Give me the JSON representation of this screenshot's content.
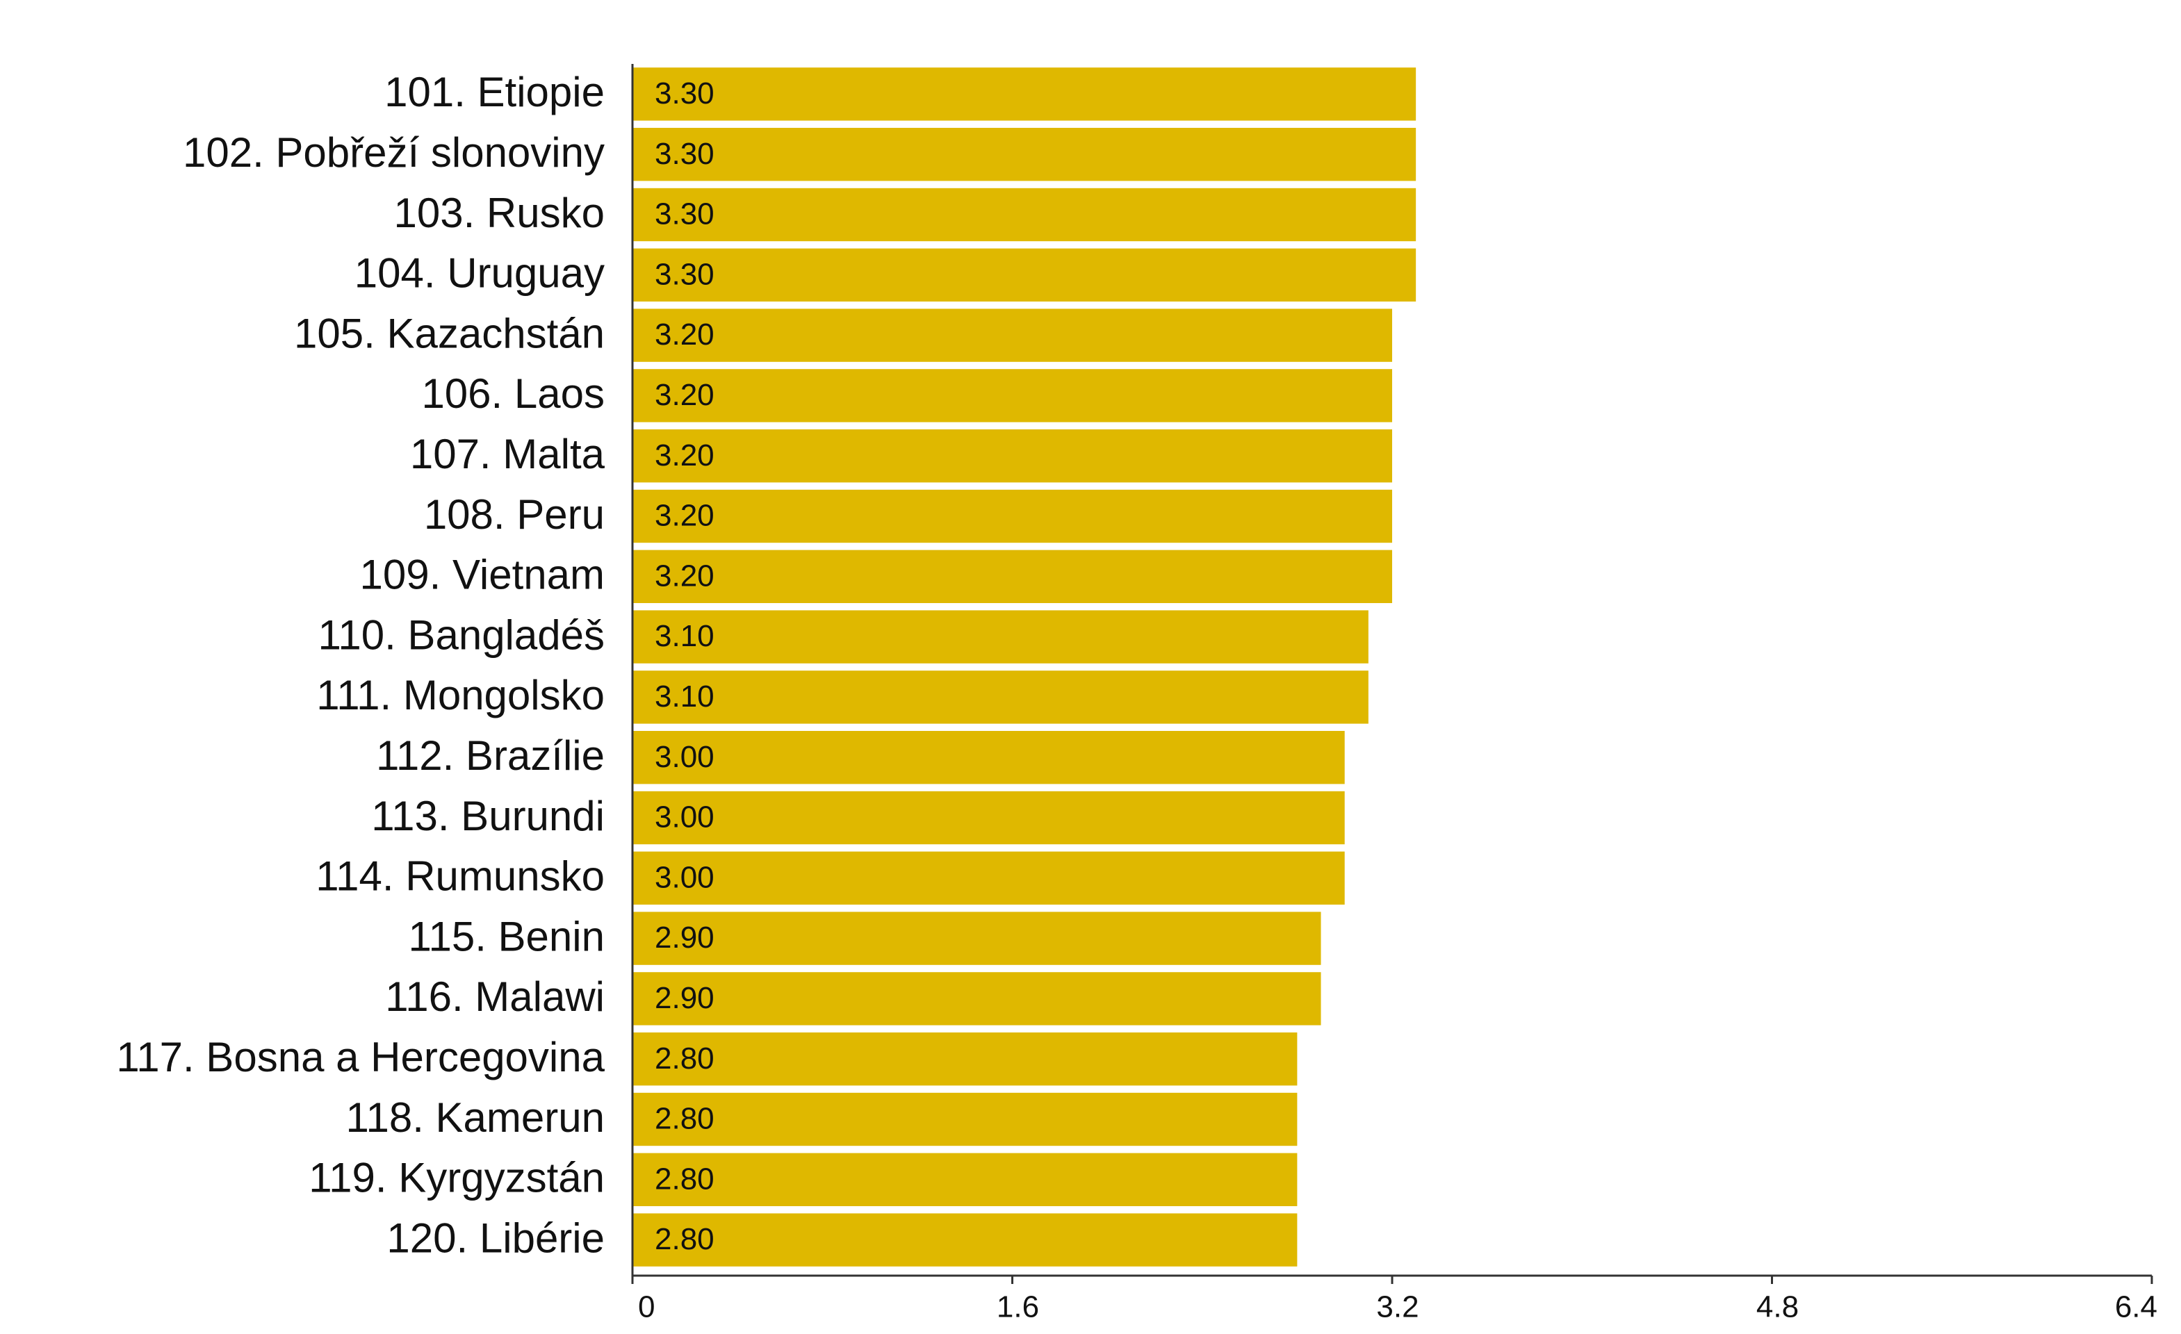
{
  "chart_data": {
    "type": "bar",
    "orientation": "horizontal",
    "categories": [
      "101. Etiopie",
      "102. Pobřeží slonoviny",
      "103. Rusko",
      "104. Uruguay",
      "105. Kazachstán",
      "106. Laos",
      "107. Malta",
      "108. Peru",
      "109. Vietnam",
      "110. Bangladéš",
      "111. Mongolsko",
      "112. Brazílie",
      "113. Burundi",
      "114. Rumunsko",
      "115. Benin",
      "116. Malawi",
      "117. Bosna a Hercegovina",
      "118. Kamerun",
      "119. Kyrgyzstán",
      "120. Libérie"
    ],
    "values": [
      3.3,
      3.3,
      3.3,
      3.3,
      3.2,
      3.2,
      3.2,
      3.2,
      3.2,
      3.1,
      3.1,
      3.0,
      3.0,
      3.0,
      2.9,
      2.9,
      2.8,
      2.8,
      2.8,
      2.8
    ],
    "value_labels": [
      "3.30",
      "3.30",
      "3.30",
      "3.30",
      "3.20",
      "3.20",
      "3.20",
      "3.20",
      "3.20",
      "3.10",
      "3.10",
      "3.00",
      "3.00",
      "3.00",
      "2.90",
      "2.90",
      "2.80",
      "2.80",
      "2.80",
      "2.80"
    ],
    "color": "#dfb800",
    "xlim": [
      0,
      6.4
    ],
    "xticks": [
      0,
      1.6,
      3.2,
      4.8,
      6.4
    ]
  }
}
